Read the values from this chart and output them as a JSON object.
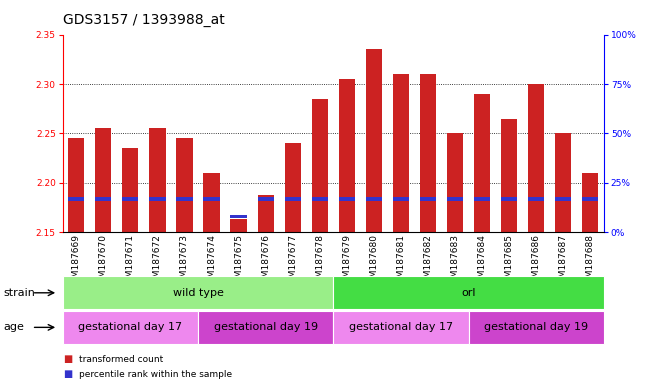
{
  "title": "GDS3157 / 1393988_at",
  "samples": [
    "GSM187669",
    "GSM187670",
    "GSM187671",
    "GSM187672",
    "GSM187673",
    "GSM187674",
    "GSM187675",
    "GSM187676",
    "GSM187677",
    "GSM187678",
    "GSM187679",
    "GSM187680",
    "GSM187681",
    "GSM187682",
    "GSM187683",
    "GSM187684",
    "GSM187685",
    "GSM187686",
    "GSM187687",
    "GSM187688"
  ],
  "transformed_count": [
    2.245,
    2.255,
    2.235,
    2.255,
    2.245,
    2.21,
    2.163,
    2.188,
    2.24,
    2.285,
    2.305,
    2.335,
    2.31,
    2.31,
    2.25,
    2.29,
    2.265,
    2.3,
    2.25,
    2.21
  ],
  "percentile_values": [
    17,
    17,
    17,
    17,
    17,
    17,
    8,
    17,
    17,
    17,
    17,
    17,
    17,
    17,
    17,
    17,
    17,
    17,
    17,
    17
  ],
  "ymin": 2.15,
  "ymax": 2.35,
  "yticks": [
    2.15,
    2.2,
    2.25,
    2.3,
    2.35
  ],
  "right_yticks": [
    0,
    25,
    50,
    75,
    100
  ],
  "right_yticklabels": [
    "0%",
    "25%",
    "50%",
    "75%",
    "100%"
  ],
  "bar_color": "#cc2222",
  "percentile_color": "#3333cc",
  "bar_width": 0.6,
  "strain_groups": [
    {
      "label": "wild type",
      "start": 0,
      "end": 10,
      "color": "#99ee88"
    },
    {
      "label": "orl",
      "start": 10,
      "end": 20,
      "color": "#44dd44"
    }
  ],
  "age_groups": [
    {
      "label": "gestational day 17",
      "start": 0,
      "end": 5,
      "color": "#ee88ee"
    },
    {
      "label": "gestational day 19",
      "start": 5,
      "end": 10,
      "color": "#cc44cc"
    },
    {
      "label": "gestational day 17",
      "start": 10,
      "end": 15,
      "color": "#ee88ee"
    },
    {
      "label": "gestational day 19",
      "start": 15,
      "end": 20,
      "color": "#cc44cc"
    }
  ],
  "legend_items": [
    {
      "label": "transformed count",
      "color": "#cc2222"
    },
    {
      "label": "percentile rank within the sample",
      "color": "#3333cc"
    }
  ],
  "title_fontsize": 10,
  "tick_fontsize": 6.5,
  "label_fontsize": 8,
  "annot_fontsize": 8
}
